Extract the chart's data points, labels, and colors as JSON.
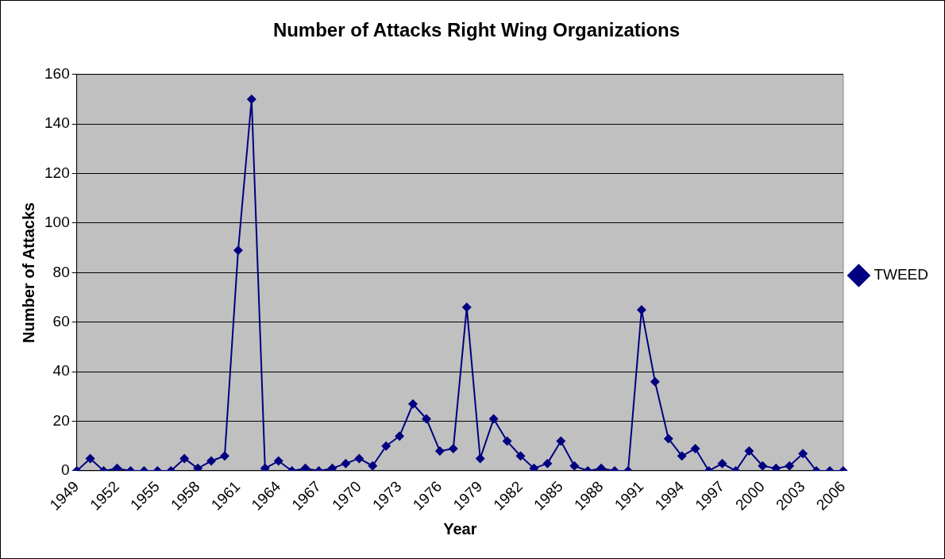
{
  "chart_data": {
    "type": "line",
    "title": "Number of Attacks Right Wing Organizations",
    "xlabel": "Year",
    "ylabel": "Number of Attacks",
    "categories": [
      "1949",
      null,
      null,
      "1952",
      null,
      null,
      "1955",
      null,
      null,
      "1958",
      null,
      null,
      "1961",
      null,
      null,
      "1964",
      null,
      null,
      "1967",
      null,
      null,
      "1970",
      null,
      null,
      "1973",
      null,
      null,
      "1976",
      null,
      null,
      "1979",
      null,
      null,
      "1982",
      null,
      null,
      "1985",
      null,
      null,
      "1988",
      null,
      null,
      "1991",
      null,
      null,
      "1994",
      null,
      null,
      "1997",
      null,
      null,
      "2000",
      null,
      null,
      "2003",
      null,
      null,
      "2006"
    ],
    "series": [
      {
        "name": "TWEED",
        "color": "#000080",
        "values": [
          0,
          5,
          0,
          1,
          0,
          0,
          0,
          0,
          5,
          1,
          4,
          6,
          89,
          150,
          1,
          4,
          0,
          1,
          0,
          1,
          3,
          5,
          2,
          10,
          14,
          27,
          21,
          8,
          9,
          66,
          5,
          21,
          12,
          6,
          1,
          3,
          12,
          2,
          0,
          1,
          0,
          0,
          65,
          36,
          13,
          6,
          9,
          0,
          3,
          0,
          8,
          2,
          1,
          2,
          7,
          0,
          0,
          0
        ]
      }
    ],
    "ylim": [
      0,
      160
    ],
    "yticks": [
      0,
      20,
      40,
      60,
      80,
      100,
      120,
      140,
      160
    ],
    "grid": "y",
    "legend": "right",
    "marker": "diamond",
    "line_style": "solid"
  }
}
